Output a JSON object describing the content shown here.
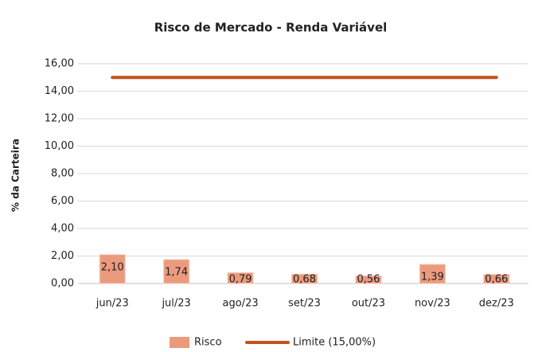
{
  "chart_data": {
    "type": "bar",
    "title": "Risco de Mercado - Renda Variável",
    "ylabel": "% da Carteira",
    "categories": [
      "jun/23",
      "jul/23",
      "ago/23",
      "set/23",
      "out/23",
      "nov/23",
      "dez/23"
    ],
    "series": [
      {
        "name": "Risco",
        "type": "bar",
        "color": "#ec9a7e",
        "values": [
          2.1,
          1.74,
          0.79,
          0.68,
          0.56,
          1.39,
          0.66
        ],
        "value_labels": [
          "2,10",
          "1,74",
          "0,79",
          "0,68",
          "0,56",
          "1,39",
          "0,66"
        ]
      },
      {
        "name": "Limite (15,00%)",
        "type": "line",
        "color": "#c4521c",
        "values": [
          15,
          15,
          15,
          15,
          15,
          15,
          15
        ]
      }
    ],
    "ylim": [
      0,
      16
    ],
    "yticks": [
      {
        "value": 0,
        "label": "0,00"
      },
      {
        "value": 2,
        "label": "2,00"
      },
      {
        "value": 4,
        "label": "4,00"
      },
      {
        "value": 6,
        "label": "6,00"
      },
      {
        "value": 8,
        "label": "8,00"
      },
      {
        "value": 10,
        "label": "10,00"
      },
      {
        "value": 12,
        "label": "12,00"
      },
      {
        "value": 14,
        "label": "14,00"
      },
      {
        "value": 16,
        "label": "16,00"
      }
    ],
    "grid": true,
    "legend": "bottom"
  }
}
